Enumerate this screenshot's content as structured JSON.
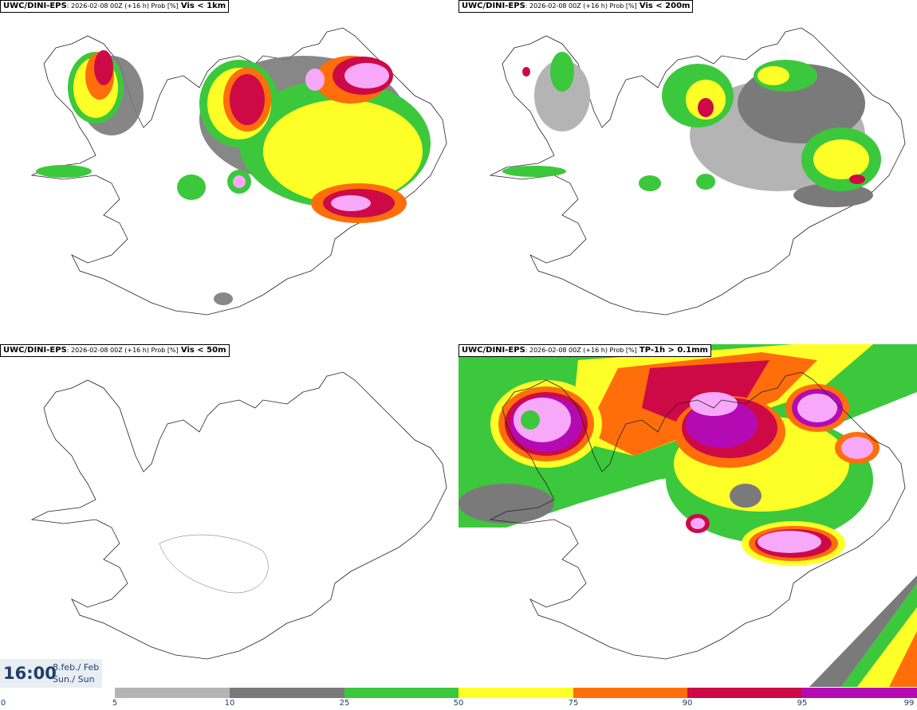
{
  "panels": [
    {
      "model": "UWC/DINI-EPS",
      "run": ": 2026-02-08 00Z (+16 h) Prob [%]",
      "param": "Vis < 1km"
    },
    {
      "model": "UWC/DINI-EPS",
      "run": ": 2026-02-08 00Z (+16 h) Prob [%]",
      "param": "Vis < 200m"
    },
    {
      "model": "UWC/DINI-EPS",
      "run": ": 2026-02-08 00Z (+16 h) Prob [%]",
      "param": "Vis < 50m"
    },
    {
      "model": "UWC/DINI-EPS",
      "run": ": 2026-02-08 00Z (+16 h) Prob [%]",
      "param": "TP-1h > 0.1mm"
    }
  ],
  "time": {
    "clock": "16:00",
    "date_line1": "8.feb./ Feb",
    "date_line2": "Sun./ Sun"
  },
  "colorbar": {
    "ticks": [
      "0",
      "5",
      "10",
      "25",
      "50",
      "75",
      "90",
      "95",
      "99"
    ],
    "colors": [
      "#ffffff",
      "#b4b4b4",
      "#7a7a7a",
      "#3cc83c",
      "#ffff28",
      "#ff6e0a",
      "#cd0a46",
      "#b40ab4",
      "#f8a8f8"
    ]
  }
}
